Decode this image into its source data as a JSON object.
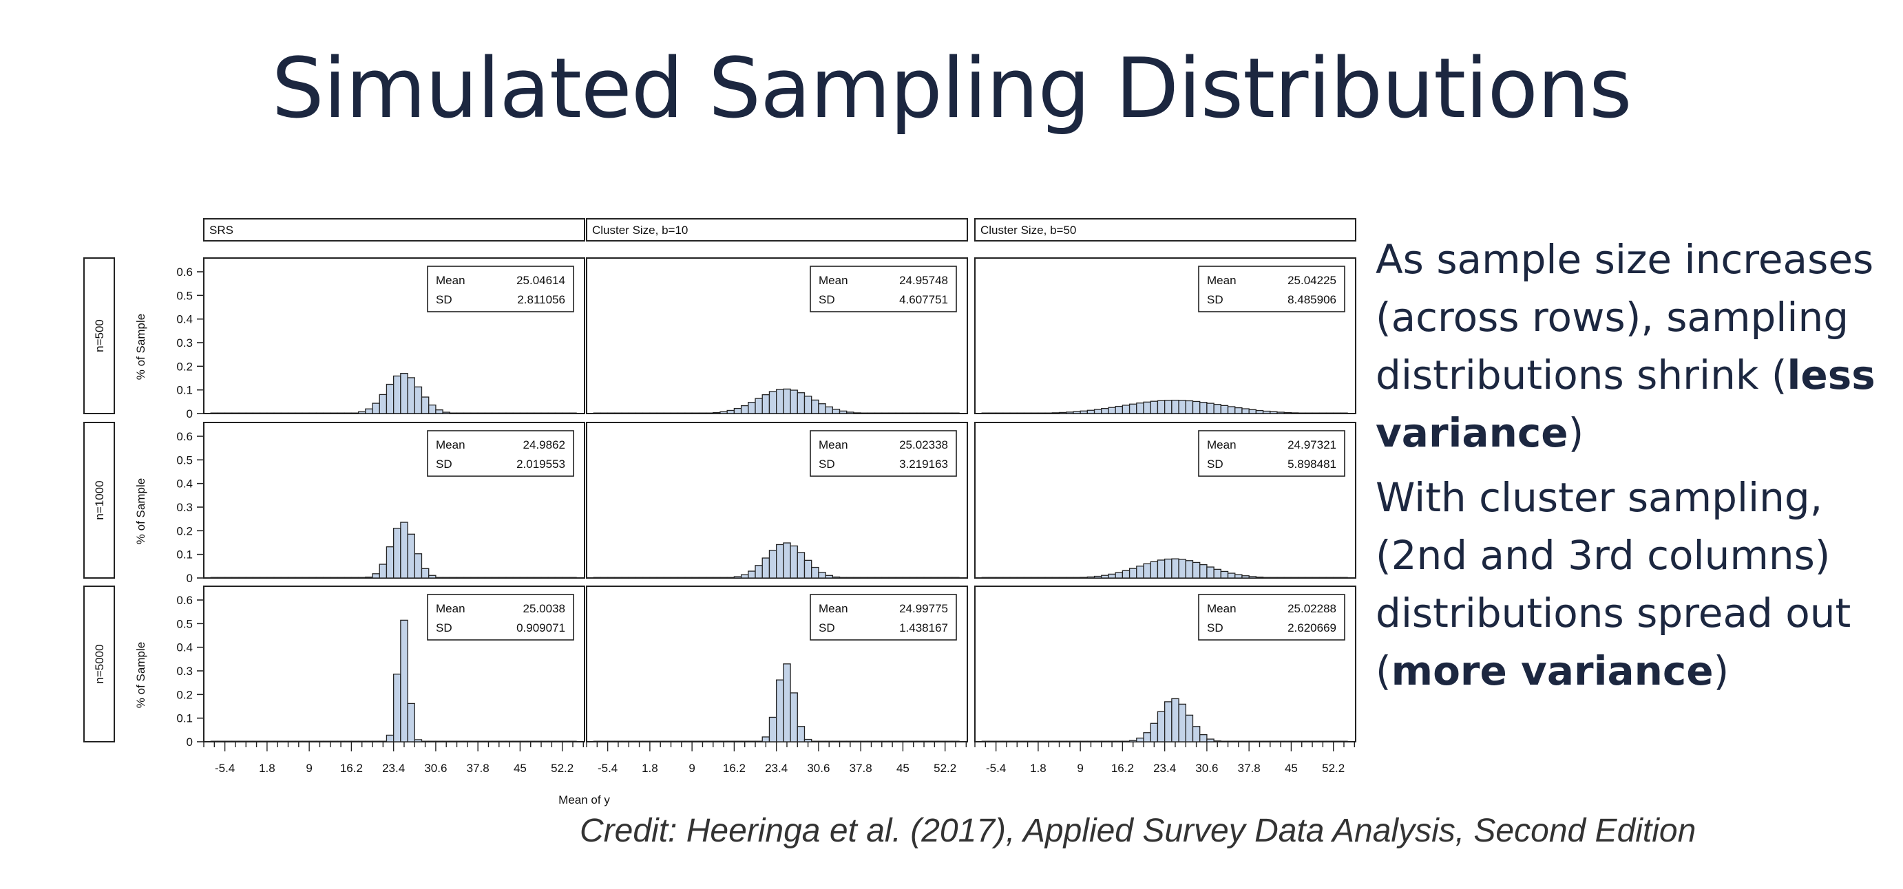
{
  "slide": {
    "title": "Simulated Sampling Distributions",
    "notes": {
      "p1_text": "As sample size increases (across rows), sampling distributions shrink",
      "p1_bold": "less variance",
      "p2_text": "With cluster sampling, (2nd and 3rd columns) distributions spread out",
      "p2_bold": "more variance"
    },
    "credit": "Credit: Heeringa et al. (2017), Applied Survey Data Analysis, Second Edition"
  },
  "chart_data": {
    "type": "bar",
    "subtype": "histogram-panel-grid",
    "xlabel": "Mean of y",
    "ylabel": "% of Sample",
    "column_labels": [
      "SRS",
      "Cluster Size, b=10",
      "Cluster Size, b=50"
    ],
    "row_labels": [
      "n=500",
      "n=1000",
      "n=5000"
    ],
    "xlim": [
      -9,
      56
    ],
    "ylim": [
      0,
      0.6
    ],
    "xticks": [
      "-5.4",
      "1.8",
      "9",
      "16.2",
      "23.4",
      "30.6",
      "37.8",
      "45",
      "52.2"
    ],
    "xtick_values": [
      -5.4,
      1.8,
      9,
      16.2,
      23.4,
      30.6,
      37.8,
      45,
      52.2
    ],
    "yticks": [
      "0",
      "0.1",
      "0.2",
      "0.3",
      "0.4",
      "0.5",
      "0.6"
    ],
    "ytick_values": [
      0,
      0.1,
      0.2,
      0.3,
      0.4,
      0.5,
      0.6
    ],
    "bin_width": 1.2,
    "stats_labels": [
      "Mean",
      "SD"
    ],
    "panels": [
      {
        "row": "n=500",
        "column": "SRS",
        "mean": 25.04614,
        "sd": 2.811056,
        "mean_label": "25.04614",
        "sd_label": "2.811056"
      },
      {
        "row": "n=500",
        "column": "Cluster Size, b=10",
        "mean": 24.95748,
        "sd": 4.607751,
        "mean_label": "24.95748",
        "sd_label": "4.607751"
      },
      {
        "row": "n=500",
        "column": "Cluster Size, b=50",
        "mean": 25.04225,
        "sd": 8.485906,
        "mean_label": "25.04225",
        "sd_label": "8.485906"
      },
      {
        "row": "n=1000",
        "column": "SRS",
        "mean": 24.9862,
        "sd": 2.019553,
        "mean_label": "24.9862",
        "sd_label": "2.019553"
      },
      {
        "row": "n=1000",
        "column": "Cluster Size, b=10",
        "mean": 25.02338,
        "sd": 3.219163,
        "mean_label": "25.02338",
        "sd_label": "3.219163"
      },
      {
        "row": "n=1000",
        "column": "Cluster Size, b=50",
        "mean": 24.97321,
        "sd": 5.898481,
        "mean_label": "24.97321",
        "sd_label": "5.898481"
      },
      {
        "row": "n=5000",
        "column": "SRS",
        "mean": 25.0038,
        "sd": 0.909071,
        "mean_label": "25.0038",
        "sd_label": "0.909071"
      },
      {
        "row": "n=5000",
        "column": "Cluster Size, b=10",
        "mean": 24.99775,
        "sd": 1.438167,
        "mean_label": "24.99775",
        "sd_label": "1.438167"
      },
      {
        "row": "n=5000",
        "column": "Cluster Size, b=50",
        "mean": 25.02288,
        "sd": 2.620669,
        "mean_label": "25.02288",
        "sd_label": "2.620669"
      }
    ],
    "bar_color": "#c3d3e8",
    "bar_edge_color": "#222222"
  }
}
